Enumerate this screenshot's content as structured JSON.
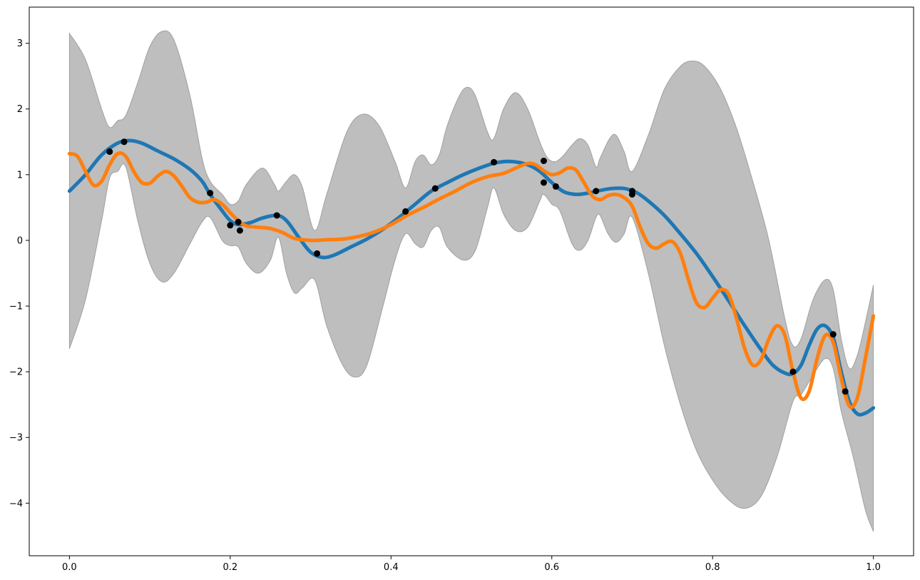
{
  "chart_data": {
    "type": "line",
    "title": "",
    "xlabel": "",
    "ylabel": "",
    "xlim": [
      -0.05,
      1.05
    ],
    "ylim": [
      -4.8,
      3.55
    ],
    "legend": "none",
    "grid": false,
    "x_ticks": [
      {
        "value": 0.0,
        "label": "0.0"
      },
      {
        "value": 0.2,
        "label": "0.2"
      },
      {
        "value": 0.4,
        "label": "0.4"
      },
      {
        "value": 0.6,
        "label": "0.6"
      },
      {
        "value": 0.8,
        "label": "0.8"
      },
      {
        "value": 1.0,
        "label": "1.0"
      }
    ],
    "y_ticks": [
      {
        "value": 3,
        "label": "3"
      },
      {
        "value": 2,
        "label": "2"
      },
      {
        "value": 1,
        "label": "1"
      },
      {
        "value": 0,
        "label": "0"
      },
      {
        "value": -1,
        "label": "−1"
      },
      {
        "value": -2,
        "label": "−2"
      },
      {
        "value": -3,
        "label": "−3"
      },
      {
        "value": -4,
        "label": "−4"
      }
    ],
    "band": {
      "color": "#bebebe",
      "edge_color": "#a0a0a0",
      "upper": [
        [
          0.0,
          3.15
        ],
        [
          0.02,
          2.75
        ],
        [
          0.04,
          2.0
        ],
        [
          0.05,
          1.72
        ],
        [
          0.06,
          1.82
        ],
        [
          0.07,
          1.9
        ],
        [
          0.085,
          2.4
        ],
        [
          0.1,
          2.95
        ],
        [
          0.115,
          3.18
        ],
        [
          0.13,
          3.05
        ],
        [
          0.15,
          2.2
        ],
        [
          0.165,
          1.25
        ],
        [
          0.175,
          0.9
        ],
        [
          0.19,
          0.7
        ],
        [
          0.2,
          0.55
        ],
        [
          0.21,
          0.6
        ],
        [
          0.22,
          0.85
        ],
        [
          0.24,
          1.1
        ],
        [
          0.255,
          0.85
        ],
        [
          0.26,
          0.75
        ],
        [
          0.27,
          0.9
        ],
        [
          0.28,
          1.0
        ],
        [
          0.29,
          0.8
        ],
        [
          0.305,
          0.15
        ],
        [
          0.32,
          0.7
        ],
        [
          0.345,
          1.65
        ],
        [
          0.365,
          1.92
        ],
        [
          0.385,
          1.75
        ],
        [
          0.405,
          1.2
        ],
        [
          0.418,
          0.8
        ],
        [
          0.43,
          1.2
        ],
        [
          0.44,
          1.3
        ],
        [
          0.45,
          1.15
        ],
        [
          0.46,
          1.3
        ],
        [
          0.47,
          1.75
        ],
        [
          0.485,
          2.2
        ],
        [
          0.495,
          2.33
        ],
        [
          0.505,
          2.2
        ],
        [
          0.52,
          1.65
        ],
        [
          0.528,
          1.55
        ],
        [
          0.54,
          2.0
        ],
        [
          0.555,
          2.25
        ],
        [
          0.57,
          2.0
        ],
        [
          0.585,
          1.5
        ],
        [
          0.595,
          1.25
        ],
        [
          0.605,
          1.2
        ],
        [
          0.615,
          1.3
        ],
        [
          0.625,
          1.45
        ],
        [
          0.635,
          1.55
        ],
        [
          0.645,
          1.45
        ],
        [
          0.655,
          1.12
        ],
        [
          0.66,
          1.25
        ],
        [
          0.672,
          1.55
        ],
        [
          0.68,
          1.6
        ],
        [
          0.69,
          1.35
        ],
        [
          0.7,
          1.05
        ],
        [
          0.72,
          1.6
        ],
        [
          0.74,
          2.3
        ],
        [
          0.76,
          2.65
        ],
        [
          0.775,
          2.73
        ],
        [
          0.79,
          2.65
        ],
        [
          0.81,
          2.3
        ],
        [
          0.83,
          1.7
        ],
        [
          0.85,
          0.9
        ],
        [
          0.87,
          0.0
        ],
        [
          0.89,
          -1.2
        ],
        [
          0.9,
          -1.6
        ],
        [
          0.91,
          -1.5
        ],
        [
          0.925,
          -0.9
        ],
        [
          0.94,
          -0.6
        ],
        [
          0.95,
          -0.75
        ],
        [
          0.96,
          -1.5
        ],
        [
          0.97,
          -1.95
        ],
        [
          0.98,
          -1.75
        ],
        [
          0.99,
          -1.25
        ],
        [
          1.0,
          -0.68
        ]
      ],
      "lower": [
        [
          0.0,
          -1.65
        ],
        [
          0.02,
          -0.9
        ],
        [
          0.04,
          0.3
        ],
        [
          0.05,
          0.95
        ],
        [
          0.06,
          1.05
        ],
        [
          0.07,
          1.12
        ],
        [
          0.085,
          0.3
        ],
        [
          0.1,
          -0.35
        ],
        [
          0.115,
          -0.63
        ],
        [
          0.13,
          -0.5
        ],
        [
          0.15,
          -0.05
        ],
        [
          0.165,
          0.28
        ],
        [
          0.175,
          0.35
        ],
        [
          0.19,
          0.0
        ],
        [
          0.2,
          -0.08
        ],
        [
          0.21,
          -0.1
        ],
        [
          0.22,
          -0.35
        ],
        [
          0.235,
          -0.5
        ],
        [
          0.25,
          -0.3
        ],
        [
          0.26,
          0.05
        ],
        [
          0.27,
          -0.5
        ],
        [
          0.28,
          -0.8
        ],
        [
          0.29,
          -0.72
        ],
        [
          0.305,
          -0.6
        ],
        [
          0.32,
          -1.3
        ],
        [
          0.34,
          -1.9
        ],
        [
          0.355,
          -2.08
        ],
        [
          0.37,
          -1.9
        ],
        [
          0.39,
          -1.0
        ],
        [
          0.405,
          -0.3
        ],
        [
          0.418,
          0.1
        ],
        [
          0.43,
          -0.05
        ],
        [
          0.44,
          -0.1
        ],
        [
          0.45,
          0.15
        ],
        [
          0.46,
          0.2
        ],
        [
          0.47,
          -0.1
        ],
        [
          0.49,
          -0.3
        ],
        [
          0.505,
          -0.15
        ],
        [
          0.52,
          0.5
        ],
        [
          0.528,
          0.8
        ],
        [
          0.54,
          0.4
        ],
        [
          0.555,
          0.15
        ],
        [
          0.57,
          0.2
        ],
        [
          0.585,
          0.6
        ],
        [
          0.59,
          0.7
        ],
        [
          0.6,
          0.55
        ],
        [
          0.61,
          0.45
        ],
        [
          0.625,
          -0.05
        ],
        [
          0.635,
          -0.15
        ],
        [
          0.645,
          0.0
        ],
        [
          0.655,
          0.35
        ],
        [
          0.66,
          0.38
        ],
        [
          0.67,
          0.1
        ],
        [
          0.68,
          -0.03
        ],
        [
          0.69,
          0.1
        ],
        [
          0.7,
          0.35
        ],
        [
          0.72,
          -0.5
        ],
        [
          0.74,
          -1.6
        ],
        [
          0.76,
          -2.5
        ],
        [
          0.78,
          -3.2
        ],
        [
          0.8,
          -3.65
        ],
        [
          0.82,
          -3.95
        ],
        [
          0.84,
          -4.08
        ],
        [
          0.86,
          -3.9
        ],
        [
          0.88,
          -3.3
        ],
        [
          0.9,
          -2.45
        ],
        [
          0.91,
          -2.35
        ],
        [
          0.925,
          -2.05
        ],
        [
          0.94,
          -1.8
        ],
        [
          0.95,
          -1.95
        ],
        [
          0.96,
          -2.6
        ],
        [
          0.975,
          -3.3
        ],
        [
          0.99,
          -4.1
        ],
        [
          1.0,
          -4.43
        ]
      ]
    },
    "series": [
      {
        "color": "#1f77b4",
        "points": [
          [
            0.0,
            0.75
          ],
          [
            0.02,
            1.0
          ],
          [
            0.04,
            1.3
          ],
          [
            0.06,
            1.48
          ],
          [
            0.075,
            1.52
          ],
          [
            0.09,
            1.48
          ],
          [
            0.11,
            1.36
          ],
          [
            0.13,
            1.24
          ],
          [
            0.15,
            1.08
          ],
          [
            0.165,
            0.9
          ],
          [
            0.175,
            0.7
          ],
          [
            0.19,
            0.45
          ],
          [
            0.2,
            0.3
          ],
          [
            0.21,
            0.24
          ],
          [
            0.225,
            0.27
          ],
          [
            0.24,
            0.34
          ],
          [
            0.258,
            0.38
          ],
          [
            0.27,
            0.3
          ],
          [
            0.285,
            0.05
          ],
          [
            0.3,
            -0.18
          ],
          [
            0.315,
            -0.26
          ],
          [
            0.33,
            -0.22
          ],
          [
            0.35,
            -0.1
          ],
          [
            0.37,
            0.02
          ],
          [
            0.39,
            0.17
          ],
          [
            0.41,
            0.35
          ],
          [
            0.43,
            0.55
          ],
          [
            0.45,
            0.75
          ],
          [
            0.47,
            0.88
          ],
          [
            0.49,
            1.0
          ],
          [
            0.51,
            1.1
          ],
          [
            0.53,
            1.18
          ],
          [
            0.55,
            1.2
          ],
          [
            0.57,
            1.15
          ],
          [
            0.585,
            1.05
          ],
          [
            0.6,
            0.88
          ],
          [
            0.615,
            0.74
          ],
          [
            0.63,
            0.7
          ],
          [
            0.645,
            0.72
          ],
          [
            0.66,
            0.76
          ],
          [
            0.675,
            0.79
          ],
          [
            0.69,
            0.79
          ],
          [
            0.705,
            0.73
          ],
          [
            0.72,
            0.6
          ],
          [
            0.74,
            0.38
          ],
          [
            0.76,
            0.1
          ],
          [
            0.78,
            -0.2
          ],
          [
            0.8,
            -0.55
          ],
          [
            0.82,
            -0.92
          ],
          [
            0.84,
            -1.3
          ],
          [
            0.86,
            -1.66
          ],
          [
            0.875,
            -1.9
          ],
          [
            0.89,
            -2.02
          ],
          [
            0.9,
            -2.03
          ],
          [
            0.91,
            -1.9
          ],
          [
            0.92,
            -1.6
          ],
          [
            0.93,
            -1.35
          ],
          [
            0.94,
            -1.3
          ],
          [
            0.95,
            -1.48
          ],
          [
            0.96,
            -2.0
          ],
          [
            0.97,
            -2.45
          ],
          [
            0.98,
            -2.64
          ],
          [
            0.99,
            -2.63
          ],
          [
            1.0,
            -2.55
          ]
        ]
      },
      {
        "color": "#ff7f0e",
        "points": [
          [
            0.0,
            1.32
          ],
          [
            0.01,
            1.28
          ],
          [
            0.02,
            1.05
          ],
          [
            0.03,
            0.84
          ],
          [
            0.04,
            0.9
          ],
          [
            0.05,
            1.15
          ],
          [
            0.06,
            1.32
          ],
          [
            0.07,
            1.28
          ],
          [
            0.08,
            1.05
          ],
          [
            0.09,
            0.88
          ],
          [
            0.1,
            0.87
          ],
          [
            0.11,
            0.98
          ],
          [
            0.12,
            1.05
          ],
          [
            0.13,
            0.98
          ],
          [
            0.14,
            0.82
          ],
          [
            0.15,
            0.65
          ],
          [
            0.16,
            0.58
          ],
          [
            0.17,
            0.58
          ],
          [
            0.18,
            0.62
          ],
          [
            0.19,
            0.55
          ],
          [
            0.2,
            0.42
          ],
          [
            0.21,
            0.3
          ],
          [
            0.22,
            0.22
          ],
          [
            0.235,
            0.2
          ],
          [
            0.25,
            0.18
          ],
          [
            0.265,
            0.12
          ],
          [
            0.28,
            0.03
          ],
          [
            0.3,
            0.0
          ],
          [
            0.32,
            0.01
          ],
          [
            0.34,
            0.02
          ],
          [
            0.36,
            0.06
          ],
          [
            0.38,
            0.13
          ],
          [
            0.4,
            0.24
          ],
          [
            0.42,
            0.38
          ],
          [
            0.44,
            0.5
          ],
          [
            0.46,
            0.63
          ],
          [
            0.48,
            0.75
          ],
          [
            0.5,
            0.88
          ],
          [
            0.52,
            0.97
          ],
          [
            0.54,
            1.02
          ],
          [
            0.555,
            1.1
          ],
          [
            0.57,
            1.17
          ],
          [
            0.58,
            1.15
          ],
          [
            0.59,
            1.06
          ],
          [
            0.6,
            1.0
          ],
          [
            0.61,
            1.03
          ],
          [
            0.62,
            1.1
          ],
          [
            0.63,
            1.07
          ],
          [
            0.64,
            0.88
          ],
          [
            0.65,
            0.68
          ],
          [
            0.66,
            0.62
          ],
          [
            0.67,
            0.68
          ],
          [
            0.68,
            0.7
          ],
          [
            0.69,
            0.65
          ],
          [
            0.7,
            0.52
          ],
          [
            0.71,
            0.2
          ],
          [
            0.72,
            -0.05
          ],
          [
            0.73,
            -0.12
          ],
          [
            0.74,
            -0.05
          ],
          [
            0.75,
            -0.02
          ],
          [
            0.76,
            -0.2
          ],
          [
            0.77,
            -0.6
          ],
          [
            0.78,
            -0.95
          ],
          [
            0.79,
            -1.02
          ],
          [
            0.8,
            -0.88
          ],
          [
            0.81,
            -0.75
          ],
          [
            0.82,
            -0.82
          ],
          [
            0.83,
            -1.2
          ],
          [
            0.84,
            -1.65
          ],
          [
            0.85,
            -1.9
          ],
          [
            0.86,
            -1.82
          ],
          [
            0.87,
            -1.5
          ],
          [
            0.88,
            -1.3
          ],
          [
            0.89,
            -1.45
          ],
          [
            0.9,
            -2.0
          ],
          [
            0.91,
            -2.4
          ],
          [
            0.92,
            -2.3
          ],
          [
            0.93,
            -1.8
          ],
          [
            0.94,
            -1.45
          ],
          [
            0.95,
            -1.55
          ],
          [
            0.96,
            -2.1
          ],
          [
            0.97,
            -2.52
          ],
          [
            0.98,
            -2.4
          ],
          [
            0.99,
            -1.8
          ],
          [
            1.0,
            -1.15
          ]
        ]
      }
    ],
    "scatter": {
      "color": "#000000",
      "points": [
        [
          0.05,
          1.35
        ],
        [
          0.068,
          1.5
        ],
        [
          0.175,
          0.72
        ],
        [
          0.2,
          0.23
        ],
        [
          0.21,
          0.28
        ],
        [
          0.212,
          0.15
        ],
        [
          0.258,
          0.38
        ],
        [
          0.308,
          -0.2
        ],
        [
          0.418,
          0.44
        ],
        [
          0.455,
          0.79
        ],
        [
          0.528,
          1.19
        ],
        [
          0.59,
          1.21
        ],
        [
          0.59,
          0.88
        ],
        [
          0.605,
          0.82
        ],
        [
          0.655,
          0.75
        ],
        [
          0.7,
          0.75
        ],
        [
          0.7,
          0.7
        ],
        [
          0.9,
          -2.0
        ],
        [
          0.95,
          -1.43
        ],
        [
          0.965,
          -2.3
        ]
      ]
    }
  }
}
